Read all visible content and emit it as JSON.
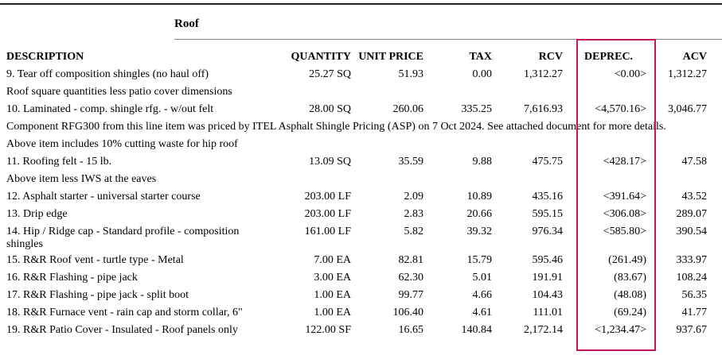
{
  "section": {
    "title": "Roof"
  },
  "colors": {
    "highlight": "#c2185b"
  },
  "headers": {
    "description": "DESCRIPTION",
    "quantity": "QUANTITY",
    "unit_price": "UNIT PRICE",
    "tax": "TAX",
    "rcv": "RCV",
    "deprec": "DEPREC.",
    "acv": "ACV"
  },
  "rows": [
    {
      "type": "item",
      "description": "9.  Tear off composition shingles (no haul off)",
      "quantity": "25.27 SQ",
      "unit_price": "51.93",
      "tax": "0.00",
      "rcv": "1,312.27",
      "deprec": "<0.00>",
      "acv": "1,312.27"
    },
    {
      "type": "note",
      "text": "Roof square quantities less patio cover dimensions"
    },
    {
      "type": "item",
      "description": "10.  Laminated - comp. shingle rfg. - w/out felt",
      "quantity": "28.00 SQ",
      "unit_price": "260.06",
      "tax": "335.25",
      "rcv": "7,616.93",
      "deprec": "<4,570.16>",
      "acv": "3,046.77"
    },
    {
      "type": "note",
      "text": "Component RFG300 from this line item was priced by ITEL Asphalt Shingle Pricing (ASP) on 7 Oct 2024. See attached document for more details."
    },
    {
      "type": "note",
      "text": "Above item includes 10% cutting waste for hip roof"
    },
    {
      "type": "item",
      "description": "11.  Roofing felt - 15 lb.",
      "quantity": "13.09 SQ",
      "unit_price": "35.59",
      "tax": "9.88",
      "rcv": "475.75",
      "deprec": "<428.17>",
      "acv": "47.58"
    },
    {
      "type": "note",
      "text": "Above item less IWS at the eaves"
    },
    {
      "type": "item",
      "description": "12.  Asphalt starter - universal starter course",
      "quantity": "203.00 LF",
      "unit_price": "2.09",
      "tax": "10.89",
      "rcv": "435.16",
      "deprec": "<391.64>",
      "acv": "43.52"
    },
    {
      "type": "item",
      "description": "13.  Drip edge",
      "quantity": "203.00 LF",
      "unit_price": "2.83",
      "tax": "20.66",
      "rcv": "595.15",
      "deprec": "<306.08>",
      "acv": "289.07"
    },
    {
      "type": "item",
      "tall": true,
      "description": "14.  Hip / Ridge cap - Standard profile - composition shingles",
      "quantity": "161.00 LF",
      "unit_price": "5.82",
      "tax": "39.32",
      "rcv": "976.34",
      "deprec": "<585.80>",
      "acv": "390.54"
    },
    {
      "type": "item",
      "description": "15.  R&R Roof vent - turtle type - Metal",
      "quantity": "7.00 EA",
      "unit_price": "82.81",
      "tax": "15.79",
      "rcv": "595.46",
      "deprec": "(261.49)",
      "acv": "333.97"
    },
    {
      "type": "item",
      "description": "16.  R&R Flashing - pipe jack",
      "quantity": "3.00 EA",
      "unit_price": "62.30",
      "tax": "5.01",
      "rcv": "191.91",
      "deprec": "(83.67)",
      "acv": "108.24"
    },
    {
      "type": "item",
      "description": "17.  R&R Flashing - pipe jack - split boot",
      "quantity": "1.00 EA",
      "unit_price": "99.77",
      "tax": "4.66",
      "rcv": "104.43",
      "deprec": "(48.08)",
      "acv": "56.35"
    },
    {
      "type": "item",
      "description": "18.  R&R Furnace vent - rain cap and storm collar, 6\"",
      "quantity": "1.00 EA",
      "unit_price": "106.40",
      "tax": "4.61",
      "rcv": "111.01",
      "deprec": "(69.24)",
      "acv": "41.77"
    },
    {
      "type": "item",
      "description": "19.  R&R Patio Cover - Insulated - Roof panels only",
      "quantity": "122.00 SF",
      "unit_price": "16.65",
      "tax": "140.84",
      "rcv": "2,172.14",
      "deprec": "<1,234.47>",
      "acv": "937.67"
    }
  ]
}
